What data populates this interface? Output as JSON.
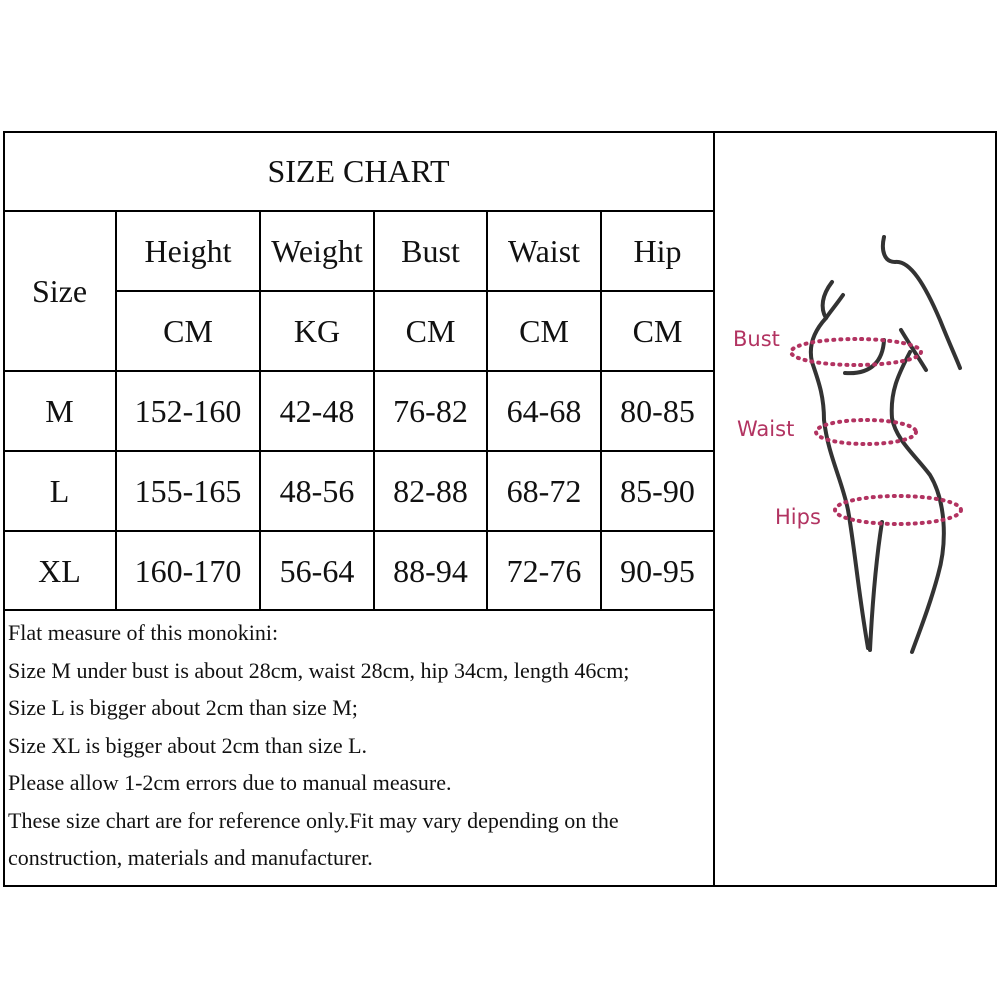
{
  "title": "SIZE CHART",
  "table": {
    "size_header": "Size",
    "columns": [
      {
        "name": "Height",
        "unit": "CM"
      },
      {
        "name": "Weight",
        "unit": "KG"
      },
      {
        "name": "Bust",
        "unit": "CM"
      },
      {
        "name": "Waist",
        "unit": "CM"
      },
      {
        "name": "Hip",
        "unit": "CM"
      }
    ],
    "rows": [
      {
        "size": "M",
        "values": [
          "152-160",
          "42-48",
          "76-82",
          "64-68",
          "80-85"
        ]
      },
      {
        "size": "L",
        "values": [
          "155-165",
          "48-56",
          "82-88",
          "68-72",
          "85-90"
        ]
      },
      {
        "size": "XL",
        "values": [
          "160-170",
          "56-64",
          "88-94",
          "72-76",
          "90-95"
        ]
      }
    ]
  },
  "notes": [
    "Flat measure of this monokini:",
    "Size M under bust is about 28cm, waist 28cm, hip 34cm, length 46cm;",
    "Size L is bigger about 2cm than size M;",
    "Size XL is bigger about 2cm than size L.",
    "Please allow 1-2cm errors due to manual measure.",
    "These size chart are for reference only.Fit may vary depending on the",
    "construction, materials and manufacturer."
  ],
  "figure": {
    "labels": {
      "bust": "Bust",
      "waist": "Waist",
      "hips": "Hips"
    },
    "label_color": "#b23361"
  }
}
